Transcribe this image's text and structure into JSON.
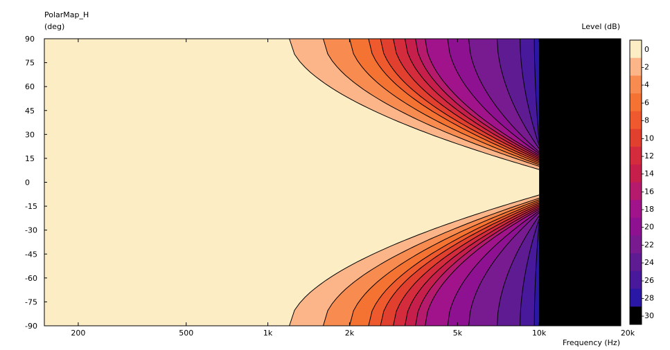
{
  "chart_data": {
    "type": "heatmap",
    "title": "PolarMap_H",
    "ylabel": "(deg)",
    "xlabel": "Frequency  (Hz)",
    "colorbar_label": "Level  (dB)",
    "x_scale": "log",
    "xlim": [
      150,
      20000
    ],
    "ylim": [
      -90,
      90
    ],
    "x_ticks": [
      {
        "value": 200,
        "label": "200"
      },
      {
        "value": 500,
        "label": "500"
      },
      {
        "value": 1000,
        "label": "1k"
      },
      {
        "value": 2000,
        "label": "2k"
      },
      {
        "value": 5000,
        "label": "5k"
      },
      {
        "value": 10000,
        "label": "10k"
      },
      {
        "value": 20000,
        "label": "20k"
      }
    ],
    "y_ticks": [
      {
        "value": 90,
        "label": "90"
      },
      {
        "value": 75,
        "label": "75"
      },
      {
        "value": 60,
        "label": "60"
      },
      {
        "value": 45,
        "label": "45"
      },
      {
        "value": 30,
        "label": "30"
      },
      {
        "value": 15,
        "label": "15"
      },
      {
        "value": 0,
        "label": "0"
      },
      {
        "value": -15,
        "label": "-15"
      },
      {
        "value": -30,
        "label": "-30"
      },
      {
        "value": -45,
        "label": "-45"
      },
      {
        "value": -60,
        "label": "-60"
      },
      {
        "value": -75,
        "label": "-75"
      },
      {
        "value": -90,
        "label": "-90"
      }
    ],
    "colorbar": {
      "levels": [
        0,
        -2,
        -4,
        -6,
        -8,
        -10,
        -12,
        -14,
        -16,
        -18,
        -20,
        -22,
        -24,
        -26,
        -28,
        -30
      ],
      "labels": [
        "0",
        "-2",
        "-4",
        "-6",
        "-8",
        "-10",
        "-12",
        "-14",
        "-16",
        "-18",
        "-20",
        "-22",
        "-24",
        "-26",
        "-28",
        "-30"
      ],
      "colors": [
        "#fdedc5",
        "#fbb589",
        "#f88b50",
        "#f47232",
        "#ee5a2e",
        "#e2402f",
        "#d42c3c",
        "#c71f4b",
        "#b51a6c",
        "#a0138a",
        "#8d1190",
        "#781b90",
        "#5e1b92",
        "#48199a",
        "#2b17a6",
        "#000000"
      ]
    },
    "contours": [
      {
        "level": -2,
        "onset_hz": 1200,
        "min_angle_at_10k": 8
      },
      {
        "level": -4,
        "onset_hz": 1600,
        "min_angle_at_10k": 10
      },
      {
        "level": -6,
        "onset_hz": 2000,
        "min_angle_at_10k": 11
      },
      {
        "level": -8,
        "onset_hz": 2350,
        "min_angle_at_10k": 12
      },
      {
        "level": -10,
        "onset_hz": 2600,
        "min_angle_at_10k": 13
      },
      {
        "level": -12,
        "onset_hz": 2900,
        "min_angle_at_10k": 14
      },
      {
        "level": -14,
        "onset_hz": 3200,
        "min_angle_at_10k": 15
      },
      {
        "level": -16,
        "onset_hz": 3500,
        "min_angle_at_10k": 16
      },
      {
        "level": -18,
        "onset_hz": 3800,
        "min_angle_at_10k": 17
      },
      {
        "level": -20,
        "onset_hz": 4600,
        "min_angle_at_10k": 18
      },
      {
        "level": -22,
        "onset_hz": 5500,
        "min_angle_at_10k": 19
      },
      {
        "level": -24,
        "onset_hz": 7000,
        "min_angle_at_10k": 21
      },
      {
        "level": -26,
        "onset_hz": 8500,
        "min_angle_at_10k": 23
      },
      {
        "level": -28,
        "onset_hz": 9600,
        "min_angle_at_10k": 25
      }
    ],
    "no_data_above_hz": 10000,
    "no_data_color": "#000000",
    "grid": false,
    "legend": "colorbar-right"
  }
}
